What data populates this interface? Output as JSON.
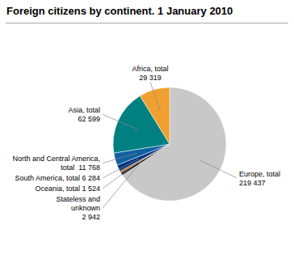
{
  "chart_data": {
    "type": "pie",
    "title": "Foreign citizens by continent. 1 January 2010",
    "categories": [
      "Europe, total\n219 437",
      "Stateless and\nunknown\n2 942",
      "Oceania, total 1 524",
      "South America, total 6 284",
      "North and Central America,\ntotal  11 768",
      "Asia, total\n62 599",
      "Africa, total\n29 319"
    ],
    "values": [
      219437,
      2942,
      1524,
      6284,
      11768,
      62599,
      29319
    ],
    "colors": [
      "#c8c8c8",
      "#1a1a1a",
      "#c84800",
      "#003580",
      "#1060a0",
      "#008080",
      "#f0a030"
    ]
  }
}
